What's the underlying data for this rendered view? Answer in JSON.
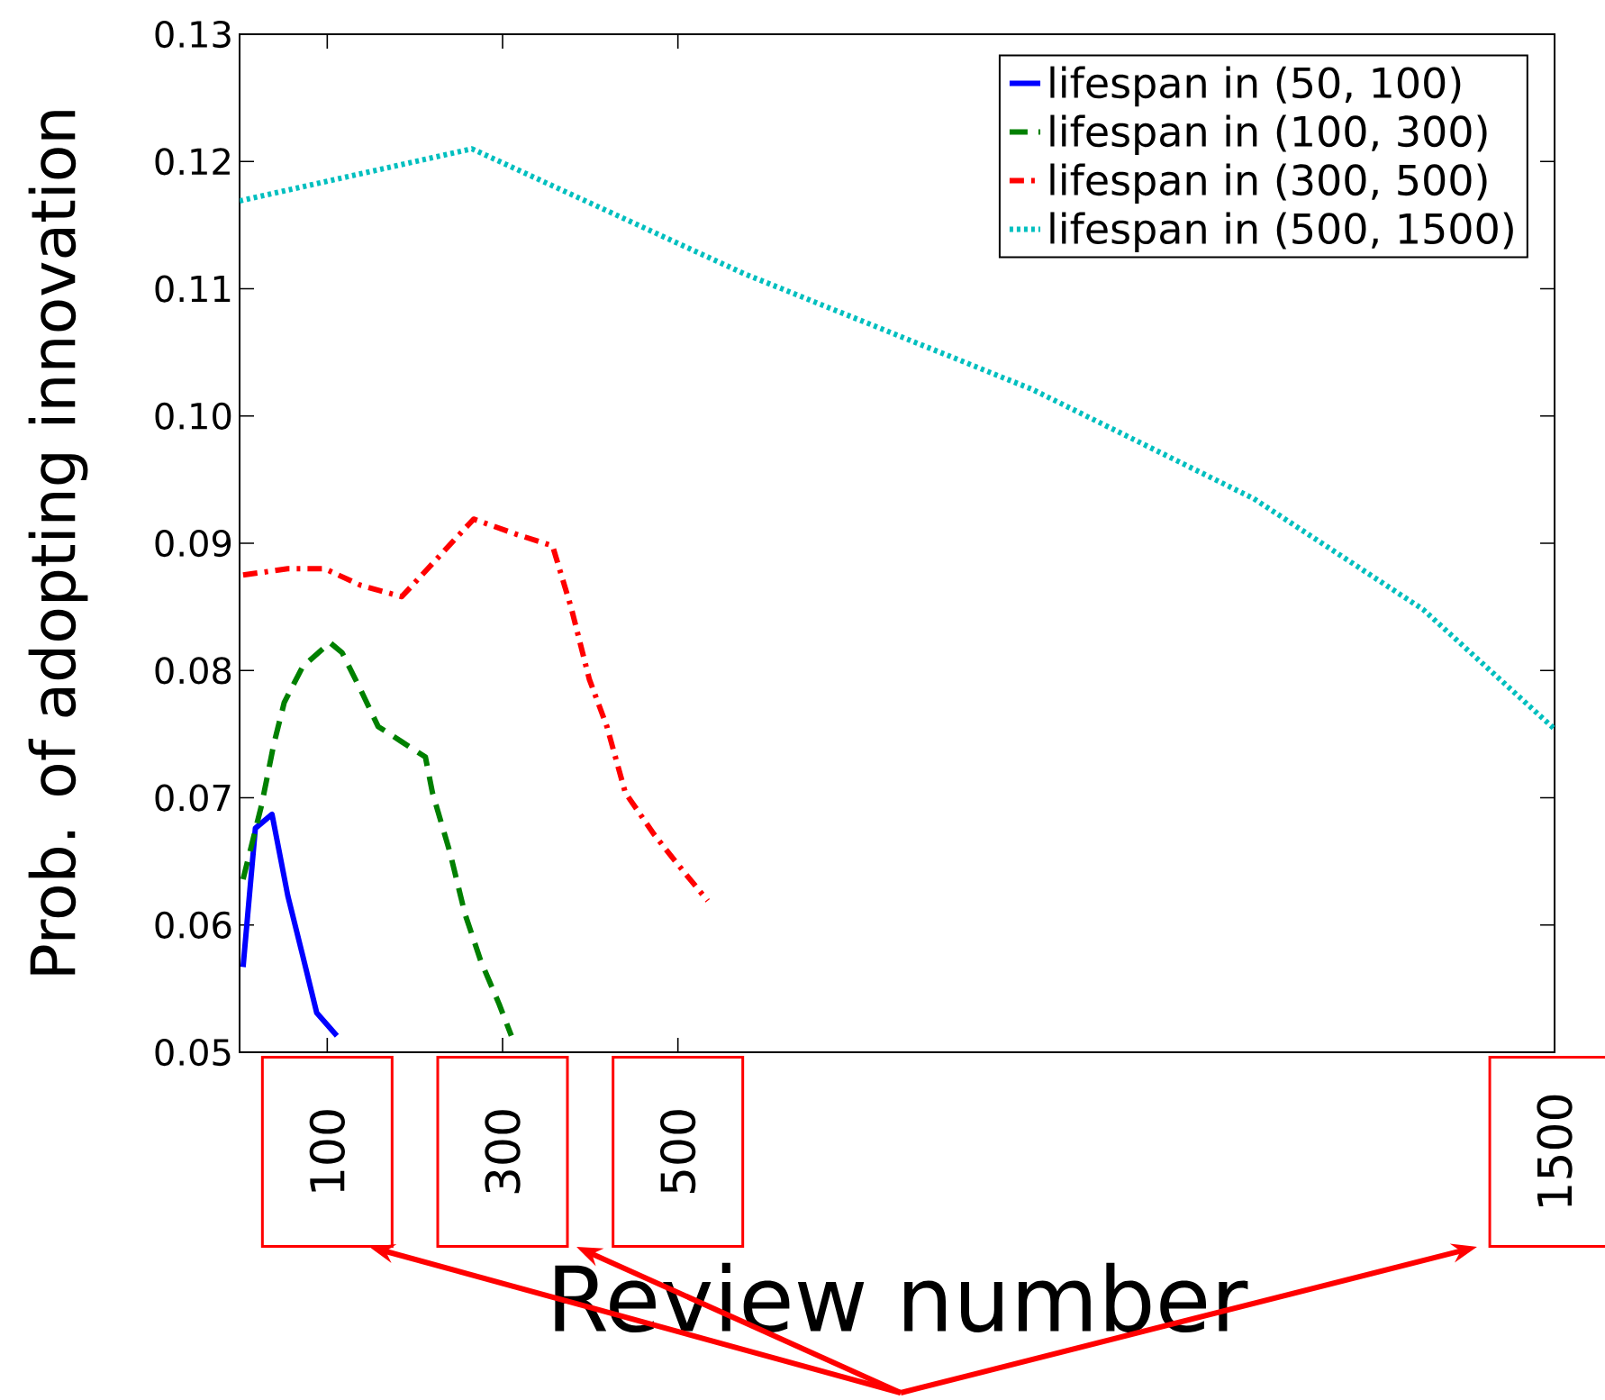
{
  "chart_data": {
    "type": "line",
    "xlabel": "Review number",
    "ylabel": "Prob. of adopting innovation",
    "xlim": [
      0,
      1500
    ],
    "ylim": [
      0.05,
      0.13
    ],
    "xticks": [
      100,
      300,
      500,
      1500
    ],
    "yticks": [
      0.05,
      0.06,
      0.07,
      0.08,
      0.09,
      {
        "value": 0.1,
        "label": "0.10"
      },
      0.11,
      0.12,
      0.13
    ],
    "legend": "top right",
    "grid": false,
    "marker": "none",
    "series": [
      {
        "name": "lifespan in (50, 100)",
        "color": "#0000ff",
        "line_style": "solid",
        "x": [
          4,
          18,
          37,
          55,
          72,
          88,
          111
        ],
        "values": [
          0.0567,
          0.0676,
          0.0687,
          0.0623,
          0.0576,
          0.0531,
          0.0513
        ]
      },
      {
        "name": "lifespan in (100, 300)",
        "color": "#008000",
        "line_style": "dashed",
        "x": [
          4,
          25,
          39,
          51,
          72,
          103,
          117,
          138,
          158,
          185,
          212,
          220,
          240,
          257,
          275,
          296,
          310
        ],
        "values": [
          0.0636,
          0.0694,
          0.0742,
          0.0775,
          0.0803,
          0.0822,
          0.0814,
          0.0785,
          0.0756,
          0.0744,
          0.0732,
          0.0704,
          0.0657,
          0.0609,
          0.0572,
          0.0538,
          0.0513
        ]
      },
      {
        "name": "lifespan in (300, 500)",
        "color": "#ff0000",
        "line_style": "dashdot",
        "x": [
          4,
          55,
          97,
          138,
          185,
          220,
          267,
          316,
          357,
          378,
          399,
          419,
          440,
          473,
          503,
          534
        ],
        "values": [
          0.0875,
          0.088,
          0.088,
          0.0867,
          0.0858,
          0.0884,
          0.0919,
          0.0907,
          0.0898,
          0.085,
          0.0793,
          0.0756,
          0.0704,
          0.0671,
          0.0645,
          0.0619
        ]
      },
      {
        "name": "lifespan in (500, 1500)",
        "color": "#00bfbf",
        "line_style": "dotted",
        "x": [
          0,
          265,
          575,
          904,
          1157,
          1350,
          1500
        ],
        "values": [
          0.1169,
          0.121,
          0.1112,
          0.1021,
          0.0935,
          0.0848,
          0.0754
        ]
      }
    ]
  }
}
